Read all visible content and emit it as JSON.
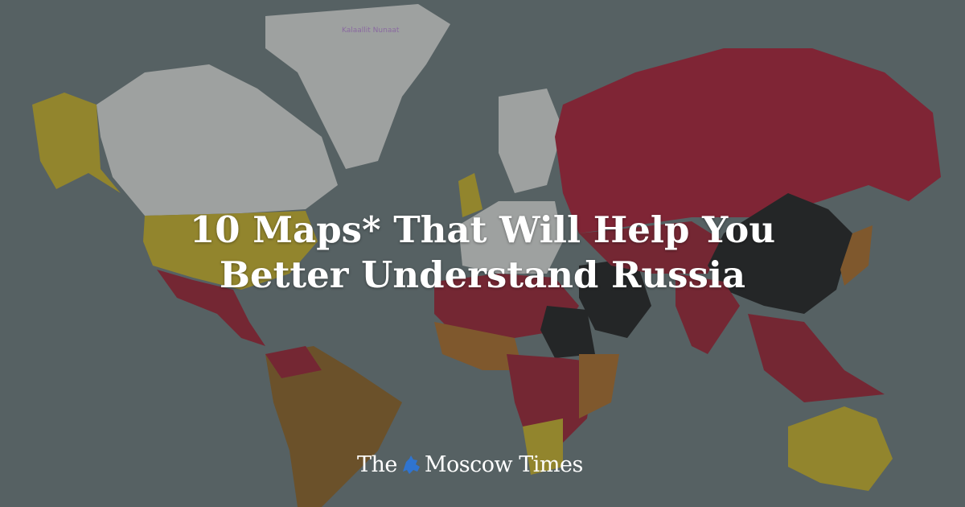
{
  "map": {
    "place_label": "Kalaallit Nunaat",
    "colors": {
      "ocean": "#5e6a6c",
      "no_data": "#c8c9c6",
      "red": "#9a1228",
      "dark_red": "#741020",
      "black": "#141414",
      "olive": "#b59f1c",
      "brown": "#7d5318",
      "orange_brown": "#9a5e1c"
    }
  },
  "headline": {
    "line1": "10 Maps* That Will Help You",
    "line2": "Better Understand Russia"
  },
  "brand": {
    "name_left": "The",
    "name_right": "Moscow Times",
    "emblem_icon": "st-george-emblem-icon",
    "emblem_color": "#2f74d0"
  }
}
